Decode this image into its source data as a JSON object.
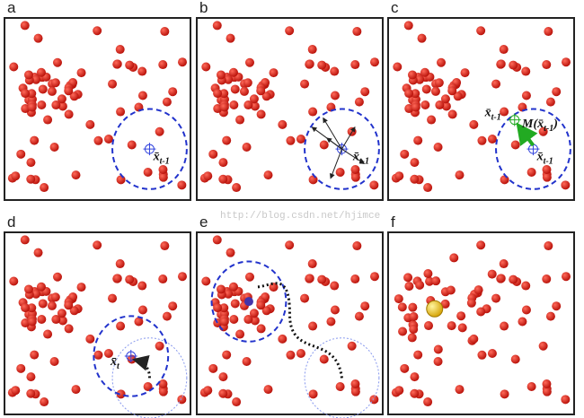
{
  "panels": [
    {
      "label": "a",
      "annotations": [
        {
          "text": "x̄",
          "sub": "t-1"
        }
      ]
    },
    {
      "label": "b",
      "annotations": [
        {
          "text": "x̄",
          "sub": "t-1"
        }
      ]
    },
    {
      "label": "c",
      "annotations": [
        {
          "text": "x̄",
          "sub": "t-1"
        },
        {
          "text": "M(x̄",
          "sub": "t-1",
          "post": ")"
        },
        {
          "text": "x̄",
          "sub": "t-1"
        }
      ]
    },
    {
      "label": "d",
      "annotations": [
        {
          "text": "x̄",
          "sub": "t"
        }
      ]
    },
    {
      "label": "e"
    },
    {
      "label": "f"
    }
  ],
  "watermark": "http://blog.csdn.net/hjimce"
}
